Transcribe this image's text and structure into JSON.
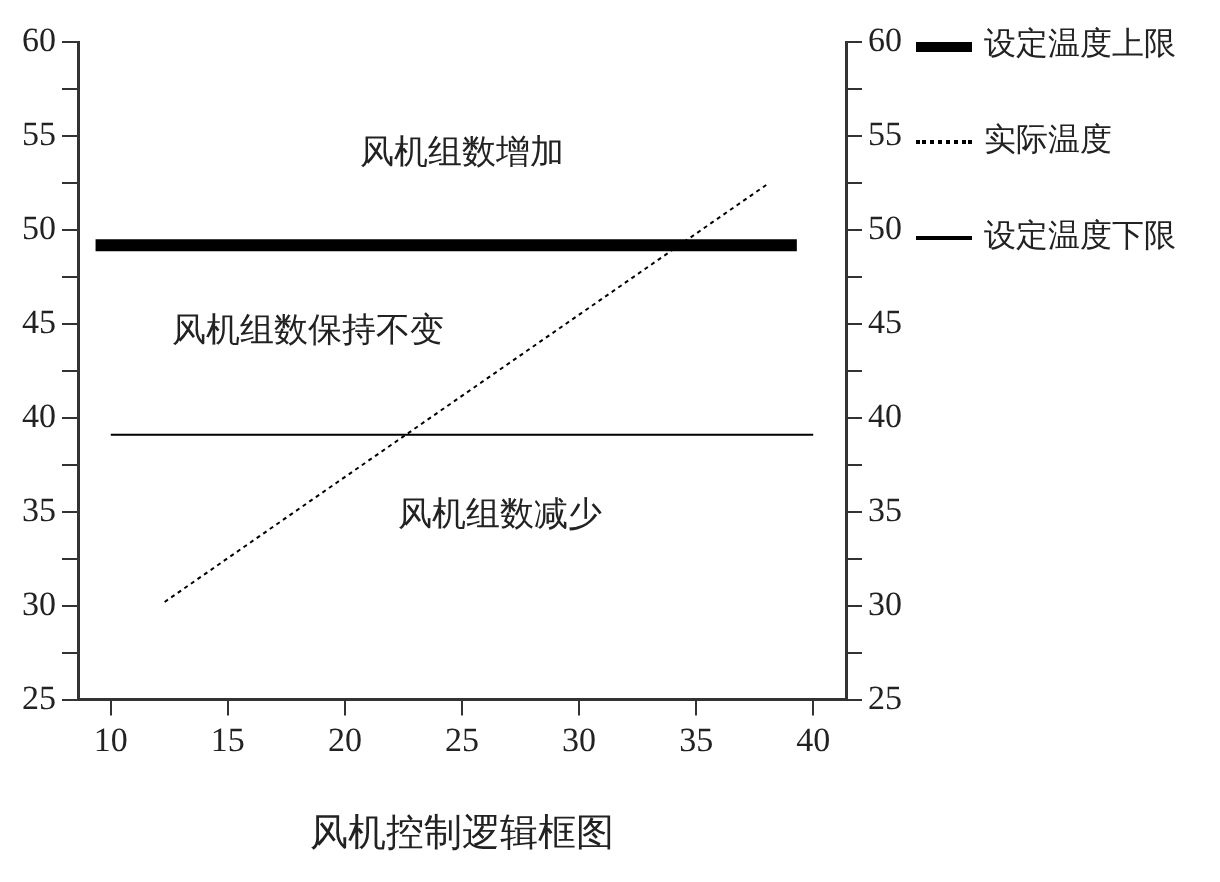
{
  "chart_data": {
    "type": "line",
    "title": "风机控制逻辑框图",
    "series": [
      {
        "name": "设定温度上限",
        "color": "#000000",
        "x": [
          9.35,
          39.3
        ],
        "values": [
          49.2,
          49.2
        ],
        "line_style": "solid",
        "marker": "none"
      },
      {
        "name": "实际温度",
        "color": "#000000",
        "x": [
          12.3,
          38.1
        ],
        "values": [
          30.2,
          52.5
        ],
        "line_style": "dotted",
        "marker": "none"
      },
      {
        "name": "设定温度下限",
        "color": "#000000",
        "x": [
          10,
          40
        ],
        "values": [
          39.1,
          39.1
        ],
        "line_style": "solid",
        "marker": "none"
      }
    ],
    "xlim": [
      8.6,
      41.4
    ],
    "xticks": [
      10,
      15,
      20,
      25,
      30,
      35,
      40
    ],
    "ylim": [
      25,
      60
    ],
    "yticks": [
      25,
      {
        "value": 27.5,
        "label": null
      },
      30,
      {
        "value": 32.5,
        "label": null
      },
      35,
      {
        "value": 37.5,
        "label": null
      },
      40,
      {
        "value": 42.5,
        "label": null
      },
      45,
      {
        "value": 47.5,
        "label": null
      },
      50,
      {
        "value": 52.5,
        "label": null
      },
      55,
      {
        "value": 57.5,
        "label": null
      },
      60
    ],
    "y2lim": [
      25,
      60
    ],
    "y2ticks": [
      25,
      {
        "value": 27.5,
        "label": null
      },
      30,
      {
        "value": 32.5,
        "label": null
      },
      35,
      {
        "value": 37.5,
        "label": null
      },
      40,
      {
        "value": 42.5,
        "label": null
      },
      45,
      {
        "value": 47.5,
        "label": null
      },
      50,
      {
        "value": 52.5,
        "label": null
      },
      55,
      {
        "value": 57.5,
        "label": null
      },
      60
    ],
    "annotations": [
      "风机组数增加",
      "风机组数保持不变",
      "风机组数减少"
    ],
    "grid": false,
    "legend": "right"
  }
}
